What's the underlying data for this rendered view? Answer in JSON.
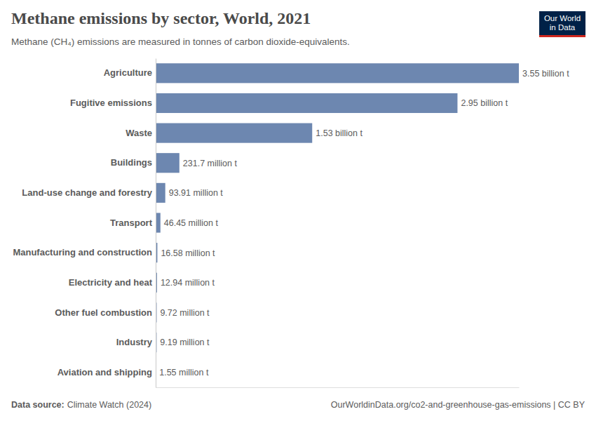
{
  "chart_data": {
    "type": "bar",
    "orientation": "horizontal",
    "title": "Methane emissions by sector, World, 2021",
    "subtitle": "Methane (CH₄) emissions are measured in tonnes of carbon dioxide-equivalents.",
    "categories": [
      "Agriculture",
      "Fugitive emissions",
      "Waste",
      "Buildings",
      "Land-use change and forestry",
      "Transport",
      "Manufacturing and construction",
      "Electricity and heat",
      "Other fuel combustion",
      "Industry",
      "Aviation and shipping"
    ],
    "values": [
      3550000000,
      2950000000,
      1530000000,
      231700000,
      93910000,
      46450000,
      16580000,
      12940000,
      9720000,
      9190000,
      1550000
    ],
    "value_labels": [
      "3.55 billion t",
      "2.95 billion t",
      "1.53 billion t",
      "231.7 million t",
      "93.91 million t",
      "46.45 million t",
      "16.58 million t",
      "12.94 million t",
      "9.72 million t",
      "9.19 million t",
      "1.55 million t"
    ],
    "color": "#6d87b0",
    "xlim": [
      0,
      3550000000
    ],
    "xticks": [
      0
    ],
    "grid": false,
    "data_labels": true,
    "tick_labels": "y",
    "source_label": "Data source:",
    "source": "Climate Watch (2024)",
    "url": "OurWorldinData.org/co2-and-greenhouse-gas-emissions | CC BY",
    "logo_lines": [
      "Our World",
      "in Data"
    ]
  }
}
